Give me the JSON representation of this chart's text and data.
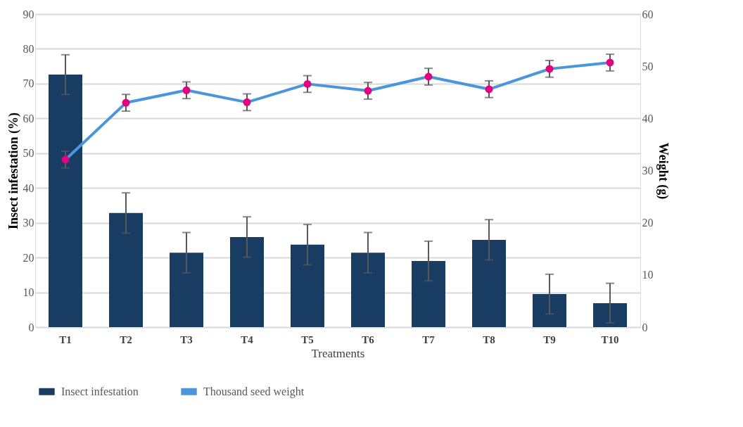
{
  "chart_data": {
    "type": "bar",
    "xlabel": "Treatments",
    "ylabel": "Insect infestation (%)",
    "y2label": "Weight (g)",
    "categories": [
      "T1",
      "T2",
      "T3",
      "T4",
      "T5",
      "T6",
      "T7",
      "T8",
      "T9",
      "T10"
    ],
    "series": [
      {
        "name": "Insect infestation",
        "color": "#193c63",
        "values": [
          72.6,
          32.8,
          21.4,
          25.9,
          23.7,
          21.4,
          19.0,
          25.1,
          9.5,
          6.9
        ],
        "errors": [
          5.7,
          5.8,
          5.8,
          5.8,
          5.8,
          5.8,
          5.7,
          5.8,
          5.7,
          5.7
        ]
      },
      {
        "name": "Thousand seed weight",
        "type": "line",
        "axis": "y2",
        "color": "#4a96dc",
        "colors": [
          "#e6007e",
          "#e6007e",
          "#e6007e",
          "#e6007e",
          "#e6007e",
          "#e6007e",
          "#e6007e",
          "#e6007e",
          "#e6007e",
          "#e6007e"
        ],
        "marker": "circle",
        "values": [
          32.1,
          43.0,
          45.4,
          43.1,
          46.6,
          45.3,
          48.0,
          45.6,
          49.5,
          50.7
        ],
        "errors": [
          1.6,
          1.6,
          1.6,
          1.6,
          1.6,
          1.6,
          1.6,
          1.6,
          1.6,
          1.6
        ]
      }
    ],
    "ylim": [
      0,
      90
    ],
    "yticks": [
      0,
      10,
      20,
      30,
      40,
      50,
      60,
      70,
      80,
      90
    ],
    "y2lim": [
      0,
      60
    ],
    "y2ticks": [
      0,
      10,
      20,
      30,
      40,
      50,
      60
    ],
    "grid": "y",
    "legend": "bottom"
  }
}
